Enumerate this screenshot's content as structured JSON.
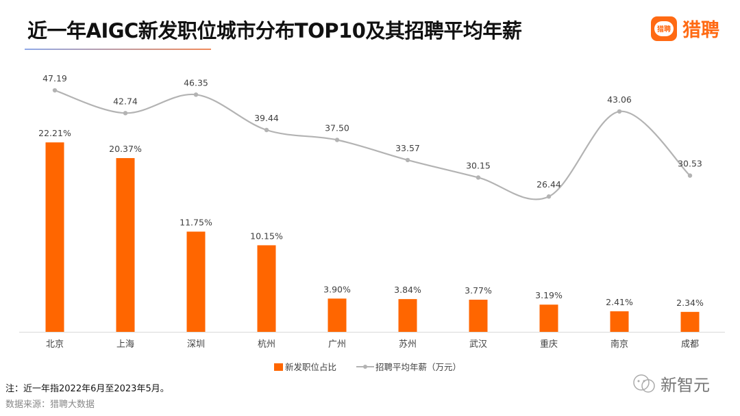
{
  "header": {
    "title": "近一年AIGC新发职位城市分布TOP10及其招聘平均年薪",
    "logo_icon_text": "猎聘",
    "logo_text": "猎聘"
  },
  "chart_data": {
    "type": "bar+line",
    "title": "近一年AIGC新发职位城市分布TOP10及其招聘平均年薪",
    "categories": [
      "北京",
      "上海",
      "深圳",
      "杭州",
      "广州",
      "苏州",
      "武汉",
      "重庆",
      "南京",
      "成都"
    ],
    "series": [
      {
        "name": "新发职位占比",
        "type": "bar",
        "axis": "left",
        "unit": "%",
        "color": "#ff6600",
        "values": [
          22.21,
          20.37,
          11.75,
          10.15,
          3.9,
          3.84,
          3.77,
          3.19,
          2.41,
          2.34
        ],
        "labels": [
          "22.21%",
          "20.37%",
          "11.75%",
          "10.15%",
          "3.90%",
          "3.84%",
          "3.77%",
          "3.19%",
          "2.41%",
          "2.34%"
        ]
      },
      {
        "name": "招聘平均年薪（万元）",
        "type": "line",
        "axis": "right",
        "smooth": true,
        "color": "#b3b3b3",
        "values": [
          47.19,
          42.74,
          46.35,
          39.44,
          37.5,
          33.57,
          30.15,
          26.44,
          43.06,
          30.53
        ],
        "labels": [
          "47.19",
          "42.74",
          "46.35",
          "39.44",
          "37.50",
          "33.57",
          "30.15",
          "26.44",
          "43.06",
          "30.53"
        ]
      }
    ],
    "bar_ylim": [
      0,
      30
    ],
    "line_ylim": [
      0,
      50
    ],
    "grid": false,
    "legend": "bottom"
  },
  "footer": {
    "note": "注：近一年指2022年6月至2023年5月。",
    "source": "数据来源：猎聘大数据",
    "watermark": "新智元"
  }
}
